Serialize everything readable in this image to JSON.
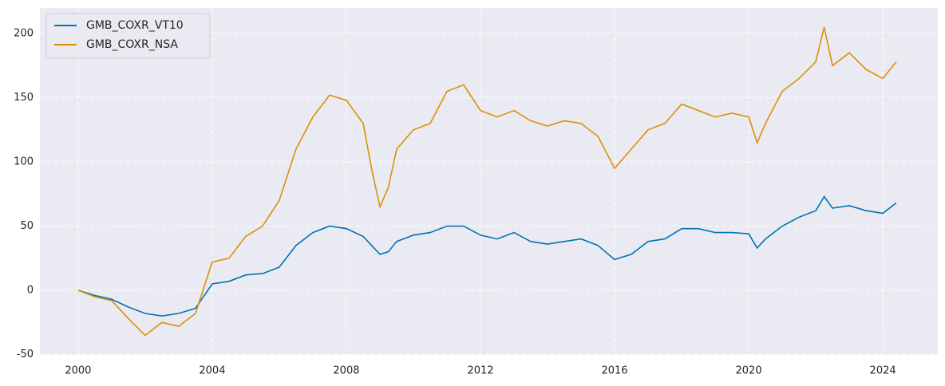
{
  "chart_data": {
    "type": "line",
    "x": [
      2000,
      2000.5,
      2001,
      2001.5,
      2002,
      2002.5,
      2003,
      2003.5,
      2004,
      2004.5,
      2005,
      2005.5,
      2006,
      2006.5,
      2007,
      2007.5,
      2008,
      2008.5,
      2008.75,
      2009,
      2009.25,
      2009.5,
      2010,
      2010.5,
      2011,
      2011.5,
      2012,
      2012.5,
      2013,
      2013.5,
      2014,
      2014.5,
      2015,
      2015.5,
      2016,
      2016.5,
      2017,
      2017.5,
      2018,
      2018.5,
      2019,
      2019.5,
      2020,
      2020.25,
      2020.5,
      2021,
      2021.5,
      2022,
      2022.25,
      2022.5,
      2023,
      2023.5,
      2024,
      2024.4
    ],
    "series": [
      {
        "name": "GMB_COXR_VT10",
        "color": "#0173b2",
        "values": [
          0,
          -4,
          -7,
          -13,
          -18,
          -20,
          -18,
          -14,
          5,
          7,
          12,
          13,
          18,
          35,
          45,
          50,
          48,
          42,
          35,
          28,
          30,
          38,
          43,
          45,
          50,
          50,
          43,
          40,
          45,
          38,
          36,
          38,
          40,
          35,
          24,
          28,
          38,
          40,
          48,
          48,
          45,
          45,
          44,
          33,
          40,
          50,
          57,
          62,
          73,
          64,
          66,
          62,
          60,
          68
        ]
      },
      {
        "name": "GMB_COXR_NSA",
        "color": "#de8f05",
        "values": [
          0,
          -5,
          -8,
          -22,
          -35,
          -25,
          -28,
          -18,
          22,
          25,
          42,
          50,
          70,
          110,
          135,
          152,
          148,
          130,
          95,
          65,
          80,
          110,
          125,
          130,
          155,
          160,
          140,
          135,
          140,
          132,
          128,
          132,
          130,
          120,
          95,
          110,
          125,
          130,
          145,
          140,
          135,
          138,
          135,
          115,
          130,
          155,
          165,
          178,
          205,
          175,
          185,
          172,
          165,
          178
        ]
      }
    ],
    "xlim": [
      1998.86,
      2025.64
    ],
    "xticks": [
      2000,
      2004,
      2008,
      2012,
      2016,
      2020,
      2024
    ],
    "ylim": [
      -50.3,
      219.9
    ],
    "yticks": [
      -50,
      0,
      50,
      100,
      150,
      200
    ],
    "grid": true,
    "legend": "upper-left"
  }
}
